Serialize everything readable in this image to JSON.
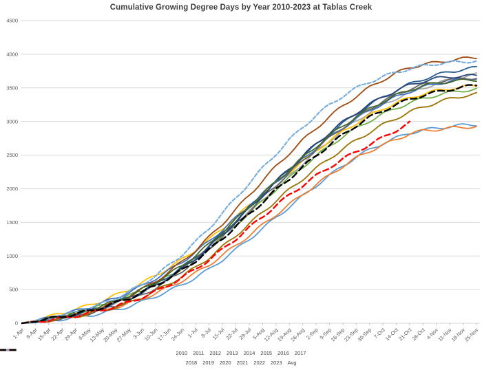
{
  "chart_data": {
    "type": "line",
    "title": "Cumulative Growing Degree Days by Year 2010-2023 at Tablas Creek",
    "xlabel": "",
    "ylabel": "",
    "ylim": [
      0,
      4500
    ],
    "y_ticks": [
      0,
      500,
      1000,
      1500,
      2000,
      2500,
      3000,
      3500,
      4000,
      4500
    ],
    "grid": "horizontal",
    "legend_position": "bottom-two-rows",
    "x_labels": [
      "1-Apr",
      "8-Apr",
      "15-Apr",
      "22-Apr",
      "29-Apr",
      "6-May",
      "13-May",
      "20-May",
      "27-May",
      "3-Jun",
      "10-Jun",
      "17-Jun",
      "24-Jun",
      "1-Jul",
      "8-Jul",
      "15-Jul",
      "22-Jul",
      "29-Jul",
      "5-Aug",
      "12-Aug",
      "19-Aug",
      "26-Aug",
      "2-Sep",
      "9-Sep",
      "16-Sep",
      "23-Sep",
      "30-Sep",
      "7-Oct",
      "14-Oct",
      "21-Oct",
      "28-Oct",
      "4-Nov",
      "11-Nov",
      "18-Nov",
      "25-Nov"
    ],
    "series": [
      {
        "name": "2010",
        "color": "#5B9BD5",
        "dash": null,
        "values": [
          0,
          15,
          35,
          60,
          85,
          115,
          150,
          195,
          250,
          320,
          400,
          480,
          575,
          680,
          800,
          945,
          1095,
          1250,
          1410,
          1570,
          1730,
          1890,
          2045,
          2195,
          2340,
          2470,
          2580,
          2675,
          2755,
          2830,
          2870,
          2900,
          2925,
          2945,
          2955
        ]
      },
      {
        "name": "2011",
        "color": "#ED7D31",
        "dash": null,
        "values": [
          0,
          20,
          45,
          75,
          105,
          140,
          185,
          235,
          295,
          365,
          445,
          535,
          635,
          745,
          870,
          1010,
          1155,
          1305,
          1460,
          1615,
          1765,
          1915,
          2060,
          2200,
          2335,
          2455,
          2560,
          2650,
          2730,
          2820,
          2860,
          2880,
          2900,
          2915,
          2925
        ]
      },
      {
        "name": "2012",
        "color": "#A5A5A5",
        "dash": null,
        "values": [
          0,
          25,
          60,
          95,
          135,
          180,
          235,
          300,
          375,
          465,
          570,
          685,
          805,
          950,
          1110,
          1285,
          1470,
          1655,
          1840,
          2025,
          2200,
          2375,
          2545,
          2710,
          2865,
          3010,
          3135,
          3245,
          3345,
          3430,
          3500,
          3560,
          3620,
          3665,
          3700
        ]
      },
      {
        "name": "2013",
        "color": "#FFC000",
        "dash": null,
        "values": [
          0,
          45,
          95,
          150,
          205,
          265,
          335,
          415,
          500,
          600,
          710,
          825,
          950,
          1090,
          1245,
          1410,
          1580,
          1750,
          1920,
          2090,
          2250,
          2410,
          2565,
          2715,
          2850,
          2975,
          3090,
          3190,
          3275,
          3350,
          3410,
          3455,
          3490,
          3515,
          3530
        ]
      },
      {
        "name": "2014",
        "color": "#4472C4",
        "dash": null,
        "values": [
          0,
          35,
          80,
          130,
          180,
          235,
          300,
          375,
          460,
          555,
          665,
          785,
          915,
          1060,
          1220,
          1390,
          1565,
          1745,
          1925,
          2100,
          2270,
          2440,
          2605,
          2760,
          2905,
          3040,
          3160,
          3270,
          3365,
          3445,
          3510,
          3560,
          3600,
          3630,
          3650
        ]
      },
      {
        "name": "2015",
        "color": "#70AD47",
        "dash": null,
        "values": [
          0,
          30,
          65,
          105,
          150,
          200,
          260,
          330,
          405,
          495,
          595,
          705,
          825,
          965,
          1120,
          1290,
          1465,
          1640,
          1815,
          1990,
          2160,
          2325,
          2485,
          2635,
          2775,
          2900,
          3010,
          3110,
          3200,
          3275,
          3340,
          3390,
          3430,
          3460,
          3480
        ]
      },
      {
        "name": "2016",
        "color": "#255E91",
        "dash": null,
        "values": [
          0,
          25,
          60,
          95,
          135,
          185,
          240,
          310,
          385,
          480,
          585,
          705,
          835,
          985,
          1155,
          1340,
          1530,
          1725,
          1920,
          2110,
          2295,
          2475,
          2650,
          2815,
          2970,
          3115,
          3245,
          3360,
          3465,
          3555,
          3630,
          3690,
          3740,
          3775,
          3800
        ]
      },
      {
        "name": "2017",
        "color": "#9E480E",
        "dash": null,
        "values": [
          0,
          25,
          55,
          90,
          130,
          180,
          240,
          315,
          400,
          505,
          625,
          765,
          920,
          1090,
          1280,
          1480,
          1690,
          1905,
          2120,
          2330,
          2530,
          2720,
          2900,
          3070,
          3230,
          3375,
          3505,
          3620,
          3720,
          3800,
          3850,
          3875,
          3910,
          3935,
          3950
        ]
      },
      {
        "name": "2018",
        "color": "#636363",
        "dash": null,
        "values": [
          0,
          20,
          45,
          75,
          110,
          150,
          200,
          260,
          330,
          420,
          525,
          645,
          780,
          935,
          1105,
          1290,
          1480,
          1670,
          1860,
          2050,
          2235,
          2415,
          2590,
          2755,
          2910,
          3055,
          3185,
          3300,
          3400,
          3485,
          3545,
          3590,
          3620,
          3640,
          3650
        ]
      },
      {
        "name": "2019",
        "color": "#997300",
        "dash": null,
        "values": [
          0,
          15,
          40,
          70,
          100,
          140,
          185,
          240,
          305,
          385,
          480,
          585,
          700,
          830,
          975,
          1135,
          1305,
          1475,
          1650,
          1820,
          1985,
          2145,
          2300,
          2450,
          2590,
          2720,
          2840,
          2950,
          3050,
          3140,
          3215,
          3280,
          3335,
          3380,
          3410
        ]
      },
      {
        "name": "2020",
        "color": "#264478",
        "dash": null,
        "values": [
          0,
          25,
          55,
          90,
          130,
          175,
          230,
          295,
          365,
          455,
          560,
          680,
          810,
          960,
          1130,
          1315,
          1505,
          1700,
          1900,
          2100,
          2295,
          2485,
          2665,
          2835,
          2990,
          3130,
          3255,
          3365,
          3460,
          3540,
          3600,
          3640,
          3665,
          3675,
          3680
        ]
      },
      {
        "name": "2021",
        "color": "#43682B",
        "dash": null,
        "values": [
          0,
          30,
          65,
          105,
          150,
          200,
          260,
          330,
          410,
          505,
          610,
          730,
          860,
          1010,
          1175,
          1355,
          1540,
          1730,
          1920,
          2105,
          2285,
          2460,
          2630,
          2790,
          2935,
          3070,
          3190,
          3295,
          3390,
          3470,
          3530,
          3570,
          3595,
          3610,
          3620
        ]
      },
      {
        "name": "2022",
        "color": "#75ACDF",
        "dash": "5 3",
        "values": [
          0,
          30,
          70,
          115,
          165,
          220,
          290,
          370,
          465,
          580,
          710,
          860,
          1025,
          1210,
          1415,
          1635,
          1860,
          2085,
          2305,
          2520,
          2725,
          2915,
          3090,
          3245,
          3380,
          3495,
          3590,
          3665,
          3730,
          3785,
          3825,
          3860,
          3875,
          3890,
          3900
        ]
      },
      {
        "name": "2023",
        "color": "#FF0000",
        "dash": "8 5",
        "values": [
          0,
          20,
          45,
          75,
          110,
          150,
          195,
          250,
          310,
          385,
          470,
          570,
          680,
          805,
          945,
          1095,
          1255,
          1420,
          1585,
          1750,
          1905,
          2050,
          2190,
          2320,
          2440,
          2550,
          2655,
          2760,
          2870,
          2980,
          null,
          null,
          null,
          null,
          null
        ]
      },
      {
        "name": "Avg",
        "color": "#000000",
        "dash": "9 5",
        "values": [
          0,
          30,
          65,
          100,
          135,
          180,
          235,
          300,
          370,
          460,
          560,
          670,
          790,
          930,
          1090,
          1260,
          1440,
          1620,
          1800,
          1980,
          2150,
          2320,
          2490,
          2650,
          2800,
          2940,
          3060,
          3160,
          3250,
          3330,
          3390,
          3435,
          3475,
          3510,
          3540
        ]
      }
    ],
    "legend_rows": [
      8,
      7
    ]
  }
}
